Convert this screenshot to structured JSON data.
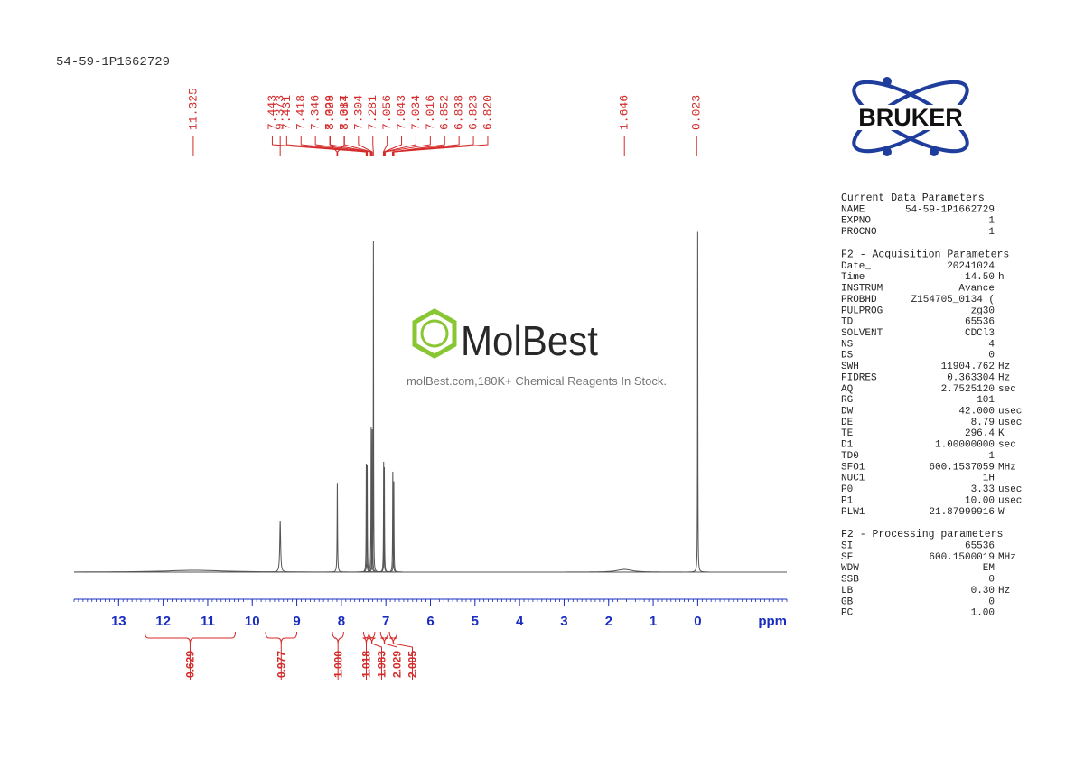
{
  "sample_name": "54-59-1P1662729",
  "logo": "BRUKER",
  "watermark": {
    "brand": "MolBest",
    "tagline": "molBest.com,180K+ Chemical Reagents In Stock."
  },
  "chart_data": {
    "type": "nmr",
    "x_label": "ppm",
    "xlim": [
      14,
      -2
    ],
    "xticks": [
      13,
      12,
      11,
      10,
      9,
      8,
      7,
      6,
      5,
      4,
      3,
      2,
      1,
      0
    ],
    "ylim": [
      0,
      400
    ],
    "color": "#555555",
    "label_color": "#d42a2a",
    "tick_color": "#1a2dbe",
    "peaks": {
      "ppm": [
        11.3,
        9.373,
        8.09,
        7.44,
        7.42,
        7.33,
        7.305,
        7.28,
        7.05,
        7.035,
        6.845,
        6.822,
        1.646,
        0.0
      ],
      "height": [
        2,
        56,
        98,
        120,
        118,
        160,
        158,
        366,
        122,
        116,
        111,
        100,
        3,
        376
      ],
      "width": [
        0.8,
        0.012,
        0.006,
        0.005,
        0.005,
        0.005,
        0.005,
        0.004,
        0.005,
        0.005,
        0.005,
        0.005,
        0.2,
        0.004
      ]
    },
    "peak_labels": [
      11.325,
      9.373,
      8.098,
      8.084,
      7.443,
      7.431,
      7.418,
      7.346,
      7.329,
      7.317,
      7.304,
      7.281,
      7.056,
      7.043,
      7.034,
      7.016,
      6.852,
      6.838,
      6.823,
      {
        "value": 6.82,
        "label": "6.820"
      },
      1.646,
      0.023
    ],
    "integrals": {
      "from": [
        12.41,
        9.7,
        8.2,
        7.5,
        7.38,
        7.12,
        6.92
      ],
      "to": [
        10.38,
        9.0,
        7.95,
        7.38,
        7.25,
        6.95,
        6.75
      ],
      "values": [
        0.629,
        0.977,
        {
          "value": 1,
          "label": "1.000"
        },
        1.018,
        1.983,
        2.029,
        2.005
      ]
    }
  },
  "parameters": [
    {
      "title": "Current Data Parameters",
      "rows": [
        [
          "NAME",
          "54-59-1P1662729"
        ],
        [
          "EXPNO",
          "1"
        ],
        [
          "PROCNO",
          "1"
        ]
      ]
    },
    {
      "title": "F2 - Acquisition Parameters",
      "rows": [
        [
          "Date_",
          "20241024"
        ],
        [
          "Time",
          "14.50",
          "h"
        ],
        [
          "INSTRUM",
          "Avance"
        ],
        [
          "PROBHD",
          "Z154705_0134 ("
        ],
        [
          "PULPROG",
          "zg30"
        ],
        [
          "TD",
          "65536"
        ],
        [
          "SOLVENT",
          "CDCl3"
        ],
        [
          "NS",
          "4"
        ],
        [
          "DS",
          "0"
        ],
        [
          "SWH",
          "11904.762",
          "Hz"
        ],
        [
          "FIDRES",
          "0.363304",
          "Hz"
        ],
        [
          "AQ",
          "2.7525120",
          "sec"
        ],
        [
          "RG",
          "101"
        ],
        [
          "DW",
          "42.000",
          "usec"
        ],
        [
          "DE",
          "8.79",
          "usec"
        ],
        [
          "TE",
          "296.4",
          "K"
        ],
        [
          "D1",
          "1.00000000",
          "sec"
        ],
        [
          "TD0",
          "1"
        ],
        [
          "SFO1",
          "600.1537059",
          "MHz"
        ],
        [
          "NUC1",
          "1H"
        ],
        [
          "P0",
          "3.33",
          "usec"
        ],
        [
          "P1",
          "10.00",
          "usec"
        ],
        [
          "PLW1",
          "21.87999916",
          "W"
        ]
      ]
    },
    {
      "title": "F2 - Processing parameters",
      "rows": [
        [
          "SI",
          "65536"
        ],
        [
          "SF",
          "600.1500019",
          "MHz"
        ],
        [
          "WDW",
          "EM"
        ],
        [
          "SSB",
          "0"
        ],
        [
          "LB",
          "0.30",
          "Hz"
        ],
        [
          "GB",
          "0"
        ],
        [
          "PC",
          "1.00"
        ]
      ]
    }
  ]
}
